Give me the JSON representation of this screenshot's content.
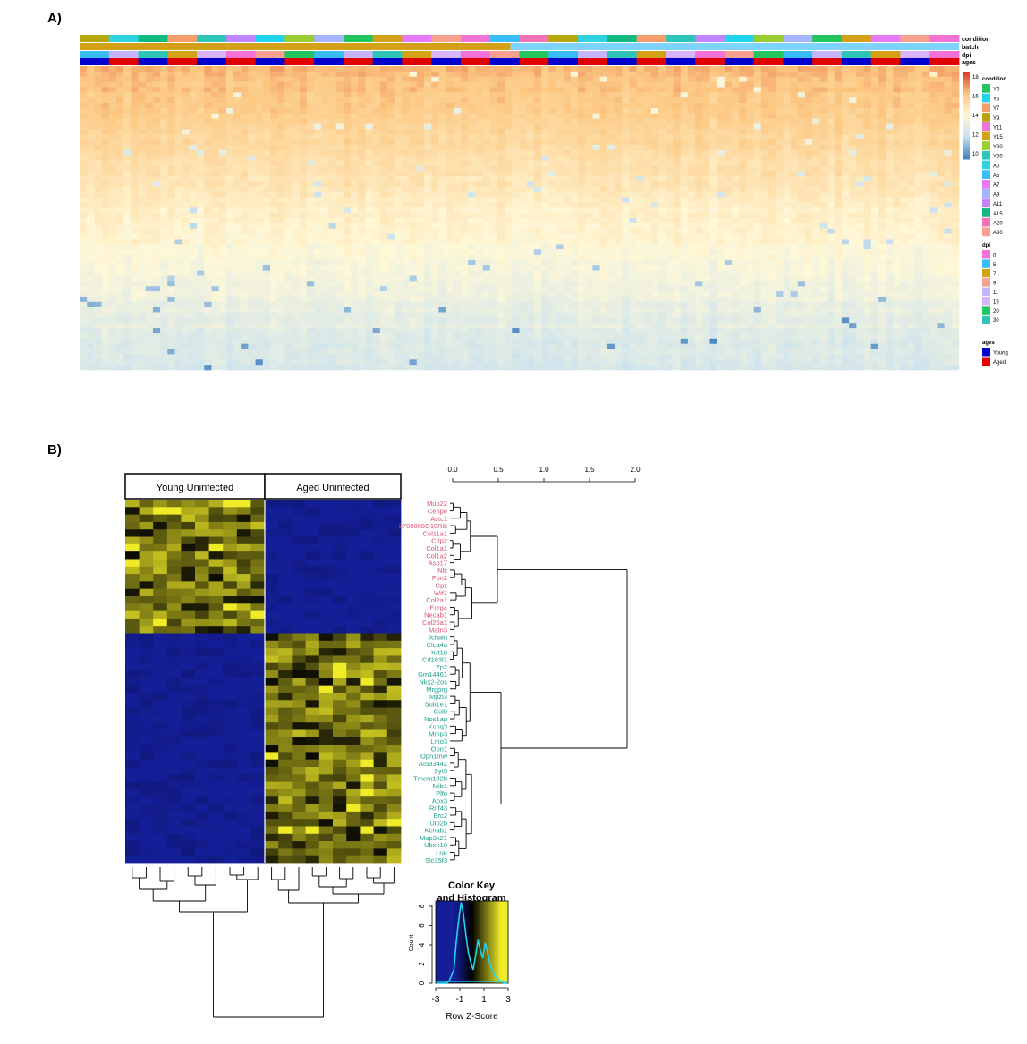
{
  "panel_a": {
    "label": "A)",
    "track_labels": [
      "condition",
      "batch",
      "dpi",
      "ages"
    ],
    "legend": {
      "heat_ticks": [
        "18",
        "16",
        "14",
        "12",
        "10"
      ],
      "condition": {
        "title": "condition",
        "items": [
          {
            "label": "Y0",
            "color": "#22c55e"
          },
          {
            "label": "Y5",
            "color": "#22d3ee"
          },
          {
            "label": "Y7",
            "color": "#f59e6b"
          },
          {
            "label": "Y9",
            "color": "#b5a60b"
          },
          {
            "label": "Y11",
            "color": "#f472d6"
          },
          {
            "label": "Y15",
            "color": "#d4a017"
          },
          {
            "label": "Y20",
            "color": "#9acd32"
          },
          {
            "label": "Y30",
            "color": "#2ec4b6"
          },
          {
            "label": "A0",
            "color": "#2fd3e0"
          },
          {
            "label": "A5",
            "color": "#38bdf8"
          },
          {
            "label": "A7",
            "color": "#e879f9"
          },
          {
            "label": "A9",
            "color": "#a5b4fc"
          },
          {
            "label": "A11",
            "color": "#c084fc"
          },
          {
            "label": "A15",
            "color": "#10b981"
          },
          {
            "label": "A20",
            "color": "#f472b6"
          },
          {
            "label": "A30",
            "color": "#f7a08f"
          }
        ]
      },
      "dpi": {
        "title": "dpi",
        "items": [
          {
            "label": "0",
            "color": "#f472d6"
          },
          {
            "label": "5",
            "color": "#38bdf8"
          },
          {
            "label": "7",
            "color": "#d4a017"
          },
          {
            "label": "9",
            "color": "#f7a08f"
          },
          {
            "label": "11",
            "color": "#c4b5fd"
          },
          {
            "label": "15",
            "color": "#d8b4fe"
          },
          {
            "label": "20",
            "color": "#22c55e"
          },
          {
            "label": "30",
            "color": "#2ec4b6"
          }
        ]
      },
      "ages": {
        "title": "ages",
        "items": [
          {
            "label": "Young",
            "color": "#0000cc"
          },
          {
            "label": "Aged",
            "color": "#e00000"
          }
        ]
      }
    }
  },
  "panel_b": {
    "label": "B)",
    "group_labels": [
      "Young Uninfected",
      "Aged Uninfected"
    ],
    "scale_ticks": [
      "0.0",
      "0.5",
      "1.0",
      "1.5",
      "2.0"
    ],
    "genes_aged_low": [
      "Mup22",
      "Cenpe",
      "Actc1",
      "2700808G10Rik",
      "Col11a1",
      "Crlp2",
      "Col1a1",
      "Col1a2",
      "Asb17",
      "Nlk",
      "Fbn2",
      "Cpz",
      "Wif1",
      "Col2a1",
      "Ecrg4",
      "Necab1",
      "Col26a1",
      "Matn3"
    ],
    "genes_aged_high": [
      "Jchain",
      "Clca4a",
      "Krt18",
      "Cd163l1",
      "Zp2",
      "Gm14461",
      "Nkx2-2os",
      "Mrgprg",
      "Mpzl3",
      "Sult1e1",
      "Col8",
      "Nos1ap",
      "Kcnq3",
      "Mmp3",
      "Lmo3",
      "Opn1",
      "Opn1mw",
      "AI593442",
      "Syt5",
      "Tmem132b",
      "Mib1",
      "Plfo",
      "Aox3",
      "Rnf43",
      "Erc2",
      "Ulb2b",
      "Kcnab1",
      "Map3k21",
      "Ubxn10",
      "Lrat",
      "Slc35f3"
    ],
    "gene_color_low": "#d9536f",
    "gene_color_high": "#1f9e89",
    "color_key": {
      "title_line1": "Color Key",
      "title_line2": "and Histogram",
      "x_ticks": [
        "-3",
        "-1",
        "1",
        "3"
      ],
      "y_ticks": [
        "0",
        "2",
        "4",
        "6",
        "8"
      ],
      "xlabel": "Row Z-Score",
      "ylabel": "Count"
    }
  },
  "chart_data": [
    {
      "type": "heatmap",
      "title": "",
      "annotation_tracks": [
        "condition",
        "batch",
        "dpi",
        "ages"
      ],
      "color_scale_range": [
        10,
        18
      ],
      "color_scale_ticks": [
        10,
        12,
        14,
        16,
        18
      ],
      "legend_position": "right"
    },
    {
      "type": "heatmap",
      "columns": [
        "Young Uninfected",
        "Aged Uninfected"
      ],
      "rows_higher_in_young": [
        "Mup22",
        "Cenpe",
        "Actc1",
        "2700808G10Rik",
        "Col11a1",
        "Crlp2",
        "Col1a1",
        "Col1a2",
        "Asb17",
        "Nlk",
        "Fbn2",
        "Cpz",
        "Wif1",
        "Col2a1",
        "Ecrg4",
        "Necab1",
        "Col26a1",
        "Matn3"
      ],
      "rows_higher_in_aged": [
        "Jchain",
        "Clca4a",
        "Krt18",
        "Cd163l1",
        "Zp2",
        "Gm14461",
        "Nkx2-2os",
        "Mrgprg",
        "Mpzl3",
        "Sult1e1",
        "Col8",
        "Nos1ap",
        "Kcnq3",
        "Mmp3",
        "Lmo3",
        "Opn1",
        "Opn1mw",
        "AI593442",
        "Syt5",
        "Tmem132b",
        "Mib1",
        "Plfo",
        "Aox3",
        "Rnf43",
        "Erc2",
        "Ulb2b",
        "Kcnab1",
        "Map3k21",
        "Ubxn10",
        "Lrat",
        "Slc35f3"
      ],
      "dendrogram_axis_range": [
        0.0,
        2.0
      ],
      "color_key_range": [
        -3,
        3
      ],
      "xlabel": "Row Z-Score",
      "histogram_ylim": [
        0,
        8
      ]
    }
  ]
}
